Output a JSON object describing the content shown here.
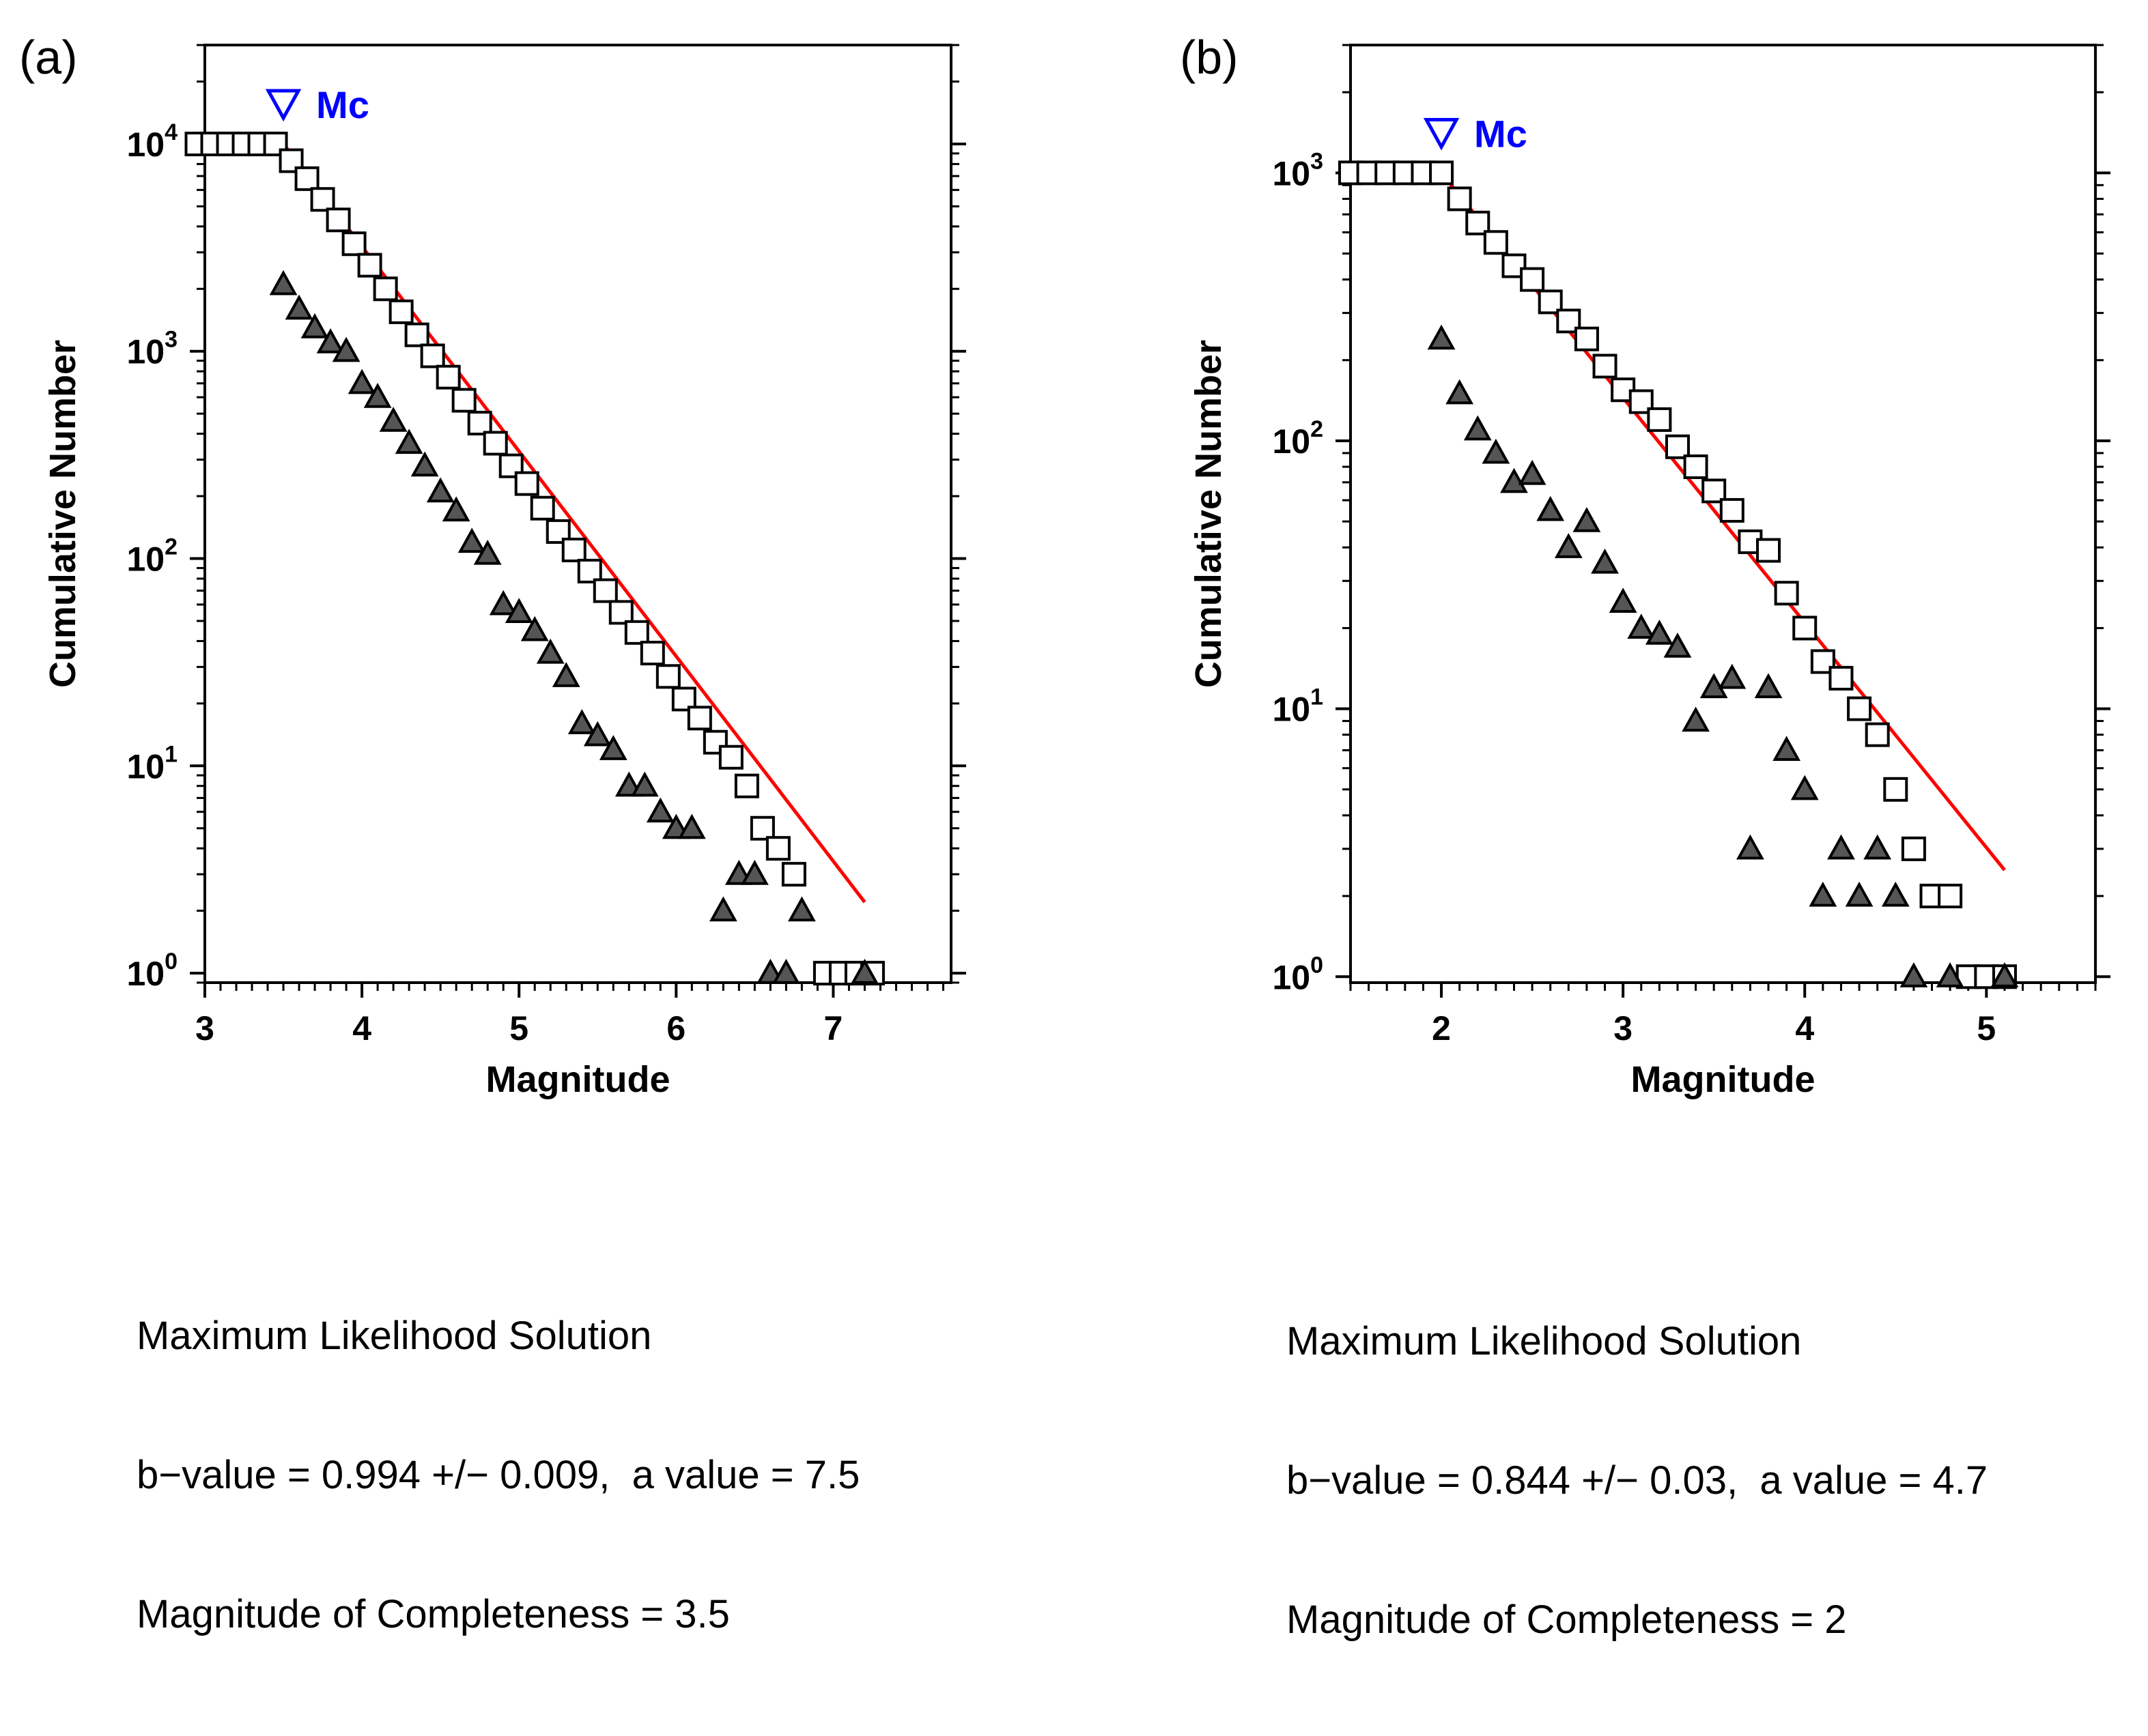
{
  "colors": {
    "fit_line": "#ff0000",
    "mc_marker": "#0000ff",
    "markers": "#000000",
    "triangle_fill": "#555555"
  },
  "chart_data": [
    {
      "type": "scatter",
      "panel_label": "(a)",
      "xlabel": "Magnitude",
      "ylabel": "Cumulative Number",
      "yscale": "log",
      "xlim": [
        3.0,
        7.75
      ],
      "ylim": [
        0.9,
        30000
      ],
      "xticks": [
        3,
        4,
        5,
        6,
        7
      ],
      "xtick_labels": [
        "3",
        "4",
        "5",
        "6",
        "7"
      ],
      "yticks": [
        1,
        10,
        100,
        1000,
        10000
      ],
      "ytick_labels": [
        {
          "base": "10",
          "exp": "0"
        },
        {
          "base": "10",
          "exp": "1"
        },
        {
          "base": "10",
          "exp": "2"
        },
        {
          "base": "10",
          "exp": "3"
        },
        {
          "base": "10",
          "exp": "4"
        }
      ],
      "mc": {
        "label": "Mc",
        "value": 3.5
      },
      "fit_line": {
        "x": [
          3.5,
          7.2
        ],
        "y": [
          10000,
          2.2
        ]
      },
      "series": [
        {
          "name": "cumulative",
          "marker": "square",
          "x": [
            2.95,
            3.05,
            3.15,
            3.25,
            3.35,
            3.45,
            3.55,
            3.65,
            3.75,
            3.85,
            3.95,
            4.05,
            4.15,
            4.25,
            4.35,
            4.45,
            4.55,
            4.65,
            4.75,
            4.85,
            4.95,
            5.05,
            5.15,
            5.25,
            5.35,
            5.45,
            5.55,
            5.65,
            5.75,
            5.85,
            5.95,
            6.05,
            6.15,
            6.25,
            6.35,
            6.45,
            6.55,
            6.65,
            6.75,
            6.95,
            7.05,
            7.15,
            7.25
          ],
          "y": [
            10000,
            10000,
            10000,
            10000,
            10000,
            10000,
            8300,
            6800,
            5400,
            4300,
            3300,
            2600,
            2000,
            1550,
            1200,
            950,
            750,
            580,
            450,
            360,
            280,
            230,
            175,
            135,
            110,
            87,
            70,
            55,
            44,
            35,
            27,
            21,
            17,
            13,
            11,
            8,
            5,
            4,
            3,
            1,
            1,
            1,
            1
          ]
        },
        {
          "name": "noncumulative",
          "marker": "triangle",
          "x": [
            3.5,
            3.6,
            3.7,
            3.8,
            3.9,
            4.0,
            4.1,
            4.2,
            4.3,
            4.4,
            4.5,
            4.6,
            4.7,
            4.8,
            4.9,
            5.0,
            5.1,
            5.2,
            5.3,
            5.4,
            5.5,
            5.6,
            5.7,
            5.8,
            5.9,
            6.0,
            6.1,
            6.2,
            6.3,
            6.4,
            6.5,
            6.6,
            6.7,
            6.8,
            7.2
          ],
          "y": [
            2100,
            1600,
            1300,
            1100,
            1000,
            700,
            600,
            460,
            360,
            280,
            210,
            170,
            120,
            105,
            60,
            55,
            45,
            35,
            27,
            16,
            14,
            12,
            8,
            8,
            6,
            5,
            5,
            null,
            2,
            3,
            3,
            1,
            1,
            2,
            1
          ]
        }
      ]
    },
    {
      "type": "scatter",
      "panel_label": "(b)",
      "xlabel": "Magnitude",
      "ylabel": "Cumulative Number",
      "yscale": "log",
      "xlim": [
        1.5,
        5.6
      ],
      "ylim": [
        0.95,
        3000
      ],
      "xticks": [
        2,
        3,
        4,
        5
      ],
      "xtick_labels": [
        "2",
        "3",
        "4",
        "5"
      ],
      "yticks": [
        1,
        10,
        100,
        1000
      ],
      "ytick_labels": [
        {
          "base": "10",
          "exp": "0"
        },
        {
          "base": "10",
          "exp": "1"
        },
        {
          "base": "10",
          "exp": "2"
        },
        {
          "base": "10",
          "exp": "3"
        }
      ],
      "mc": {
        "label": "Mc",
        "value": 2.0
      },
      "fit_line": {
        "x": [
          2.0,
          5.1
        ],
        "y": [
          1000,
          2.5
        ]
      },
      "series": [
        {
          "name": "cumulative",
          "marker": "square",
          "x": [
            1.5,
            1.6,
            1.7,
            1.8,
            1.9,
            2.0,
            2.1,
            2.2,
            2.3,
            2.4,
            2.5,
            2.6,
            2.7,
            2.8,
            2.9,
            3.0,
            3.1,
            3.2,
            3.3,
            3.4,
            3.5,
            3.6,
            3.7,
            3.8,
            3.9,
            4.0,
            4.1,
            4.2,
            4.3,
            4.4,
            4.5,
            4.6,
            4.7,
            4.8,
            4.9,
            5.0,
            5.1
          ],
          "y": [
            1000,
            1000,
            1000,
            1000,
            1000,
            1000,
            800,
            650,
            550,
            450,
            400,
            330,
            280,
            240,
            190,
            155,
            140,
            120,
            95,
            80,
            65,
            55,
            42,
            39,
            27,
            20,
            15,
            13,
            10,
            8,
            5,
            3,
            2,
            2,
            1,
            1,
            1
          ]
        },
        {
          "name": "noncumulative",
          "marker": "triangle",
          "x": [
            2.0,
            2.1,
            2.2,
            2.3,
            2.4,
            2.5,
            2.6,
            2.7,
            2.8,
            2.9,
            3.0,
            3.1,
            3.2,
            3.3,
            3.4,
            3.5,
            3.6,
            3.7,
            3.8,
            3.9,
            4.0,
            4.1,
            4.2,
            4.3,
            4.4,
            4.5,
            4.6,
            4.8,
            5.1
          ],
          "y": [
            240,
            150,
            110,
            90,
            70,
            75,
            55,
            40,
            50,
            35,
            25,
            20,
            19,
            17,
            9,
            12,
            13,
            3,
            12,
            7,
            5,
            2,
            3,
            2,
            3,
            2,
            1,
            1,
            1
          ]
        }
      ]
    }
  ],
  "solutions": [
    {
      "title": "Maximum Likelihood Solution",
      "bvalue_line": "b−value = 0.994 +/− 0.009,  a value = 7.5",
      "completeness_line": "Magnitude of Completeness = 3.5"
    },
    {
      "title": "Maximum Likelihood Solution",
      "bvalue_line": "b−value = 0.844 +/− 0.03,  a value = 4.7",
      "completeness_line": "Magnitude of Completeness = 2"
    }
  ]
}
